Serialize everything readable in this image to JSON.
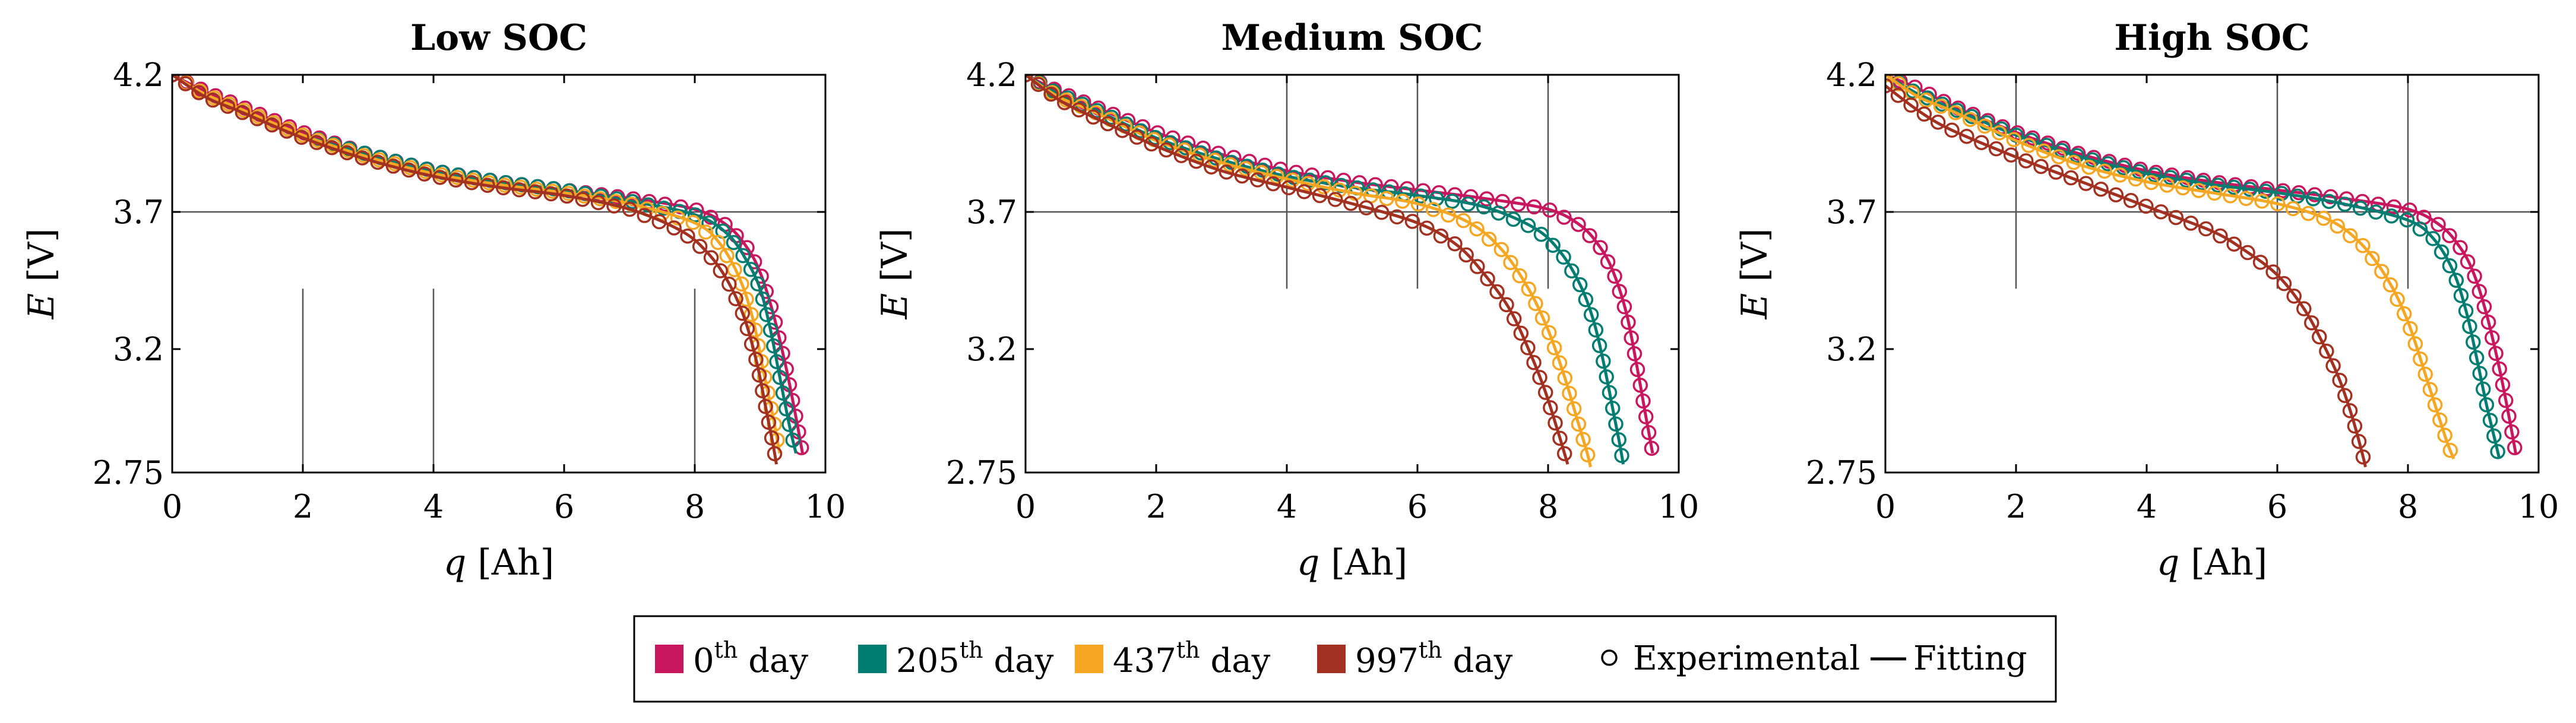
{
  "chart_data": {
    "type": "line",
    "shared": {
      "xlabel": {
        "symbol": "q",
        "unit": "[Ah]"
      },
      "ylabel": {
        "symbol": "E",
        "unit": "[V]"
      },
      "xlim": [
        0,
        10
      ],
      "ylim": [
        2.75,
        4.2
      ],
      "xticks": [
        "0",
        "2",
        "4",
        "6",
        "8",
        "10"
      ],
      "yticks": [
        "2.75",
        "3.2",
        "3.7",
        "4.2"
      ],
      "xtick_values": [
        0,
        2,
        4,
        6,
        8,
        10
      ],
      "ytick_values": [
        2.75,
        3.2,
        3.7,
        4.2
      ],
      "grid": false
    },
    "series_meta": [
      {
        "key": "d0",
        "name": "0",
        "sup": "th",
        "suffix": "day",
        "color": "#c8175f"
      },
      {
        "key": "d205",
        "name": "205",
        "sup": "th",
        "suffix": "day",
        "color": "#007d70"
      },
      {
        "key": "d437",
        "name": "437",
        "sup": "th",
        "suffix": "day",
        "color": "#f5a623"
      },
      {
        "key": "d997",
        "name": "997",
        "sup": "th",
        "suffix": "day",
        "color": "#a23121"
      }
    ],
    "legend": {
      "experimental_label": "Experimental",
      "fitting_label": "Fitting",
      "placement": "bottom-center"
    },
    "panels": [
      {
        "title": "Low SOC",
        "ref_hline": 3.7,
        "ref_vlines": [
          {
            "x": 2,
            "y_from": 2.75,
            "y_to": 3.42
          },
          {
            "x": 4,
            "y_from": 2.75,
            "y_to": 3.42
          },
          {
            "x": 8,
            "y_from": 2.75,
            "y_to": 3.42
          }
        ],
        "series": [
          {
            "key": "d0",
            "points": [
              [
                0,
                4.2
              ],
              [
                0.5,
                4.14
              ],
              [
                1,
                4.09
              ],
              [
                2,
                3.99
              ],
              [
                3,
                3.91
              ],
              [
                4,
                3.85
              ],
              [
                5,
                3.81
              ],
              [
                6,
                3.78
              ],
              [
                7,
                3.75
              ],
              [
                8,
                3.71
              ],
              [
                8.5,
                3.65
              ],
              [
                8.8,
                3.57
              ],
              [
                9.0,
                3.48
              ],
              [
                9.2,
                3.33
              ],
              [
                9.4,
                3.13
              ],
              [
                9.55,
                2.95
              ],
              [
                9.65,
                2.82
              ]
            ]
          },
          {
            "key": "d205",
            "points": [
              [
                0,
                4.2
              ],
              [
                0.5,
                4.13
              ],
              [
                1,
                4.08
              ],
              [
                2,
                3.98
              ],
              [
                3,
                3.91
              ],
              [
                4,
                3.85
              ],
              [
                5,
                3.81
              ],
              [
                6,
                3.78
              ],
              [
                7,
                3.74
              ],
              [
                8,
                3.69
              ],
              [
                8.5,
                3.62
              ],
              [
                8.8,
                3.52
              ],
              [
                9.0,
                3.42
              ],
              [
                9.15,
                3.28
              ],
              [
                9.3,
                3.1
              ],
              [
                9.45,
                2.92
              ],
              [
                9.55,
                2.82
              ]
            ]
          },
          {
            "key": "d437",
            "points": [
              [
                0,
                4.2
              ],
              [
                0.5,
                4.13
              ],
              [
                1,
                4.08
              ],
              [
                2,
                3.98
              ],
              [
                3,
                3.9
              ],
              [
                4,
                3.84
              ],
              [
                5,
                3.8
              ],
              [
                6,
                3.77
              ],
              [
                7,
                3.73
              ],
              [
                8,
                3.66
              ],
              [
                8.4,
                3.58
              ],
              [
                8.7,
                3.45
              ],
              [
                8.9,
                3.3
              ],
              [
                9.05,
                3.12
              ],
              [
                9.2,
                2.95
              ],
              [
                9.3,
                2.82
              ]
            ]
          },
          {
            "key": "d997",
            "points": [
              [
                0,
                4.2
              ],
              [
                0.5,
                4.12
              ],
              [
                1,
                4.07
              ],
              [
                2,
                3.97
              ],
              [
                3,
                3.89
              ],
              [
                4,
                3.83
              ],
              [
                5,
                3.79
              ],
              [
                6,
                3.76
              ],
              [
                7,
                3.71
              ],
              [
                7.8,
                3.63
              ],
              [
                8.2,
                3.55
              ],
              [
                8.5,
                3.45
              ],
              [
                8.75,
                3.32
              ],
              [
                8.95,
                3.15
              ],
              [
                9.1,
                2.97
              ],
              [
                9.2,
                2.85
              ],
              [
                9.25,
                2.78
              ]
            ]
          }
        ]
      },
      {
        "title": "Medium SOC",
        "ref_hline": 3.7,
        "ref_vlines": [
          {
            "x": 4,
            "y_from": 3.42,
            "y_to": 4.2
          },
          {
            "x": 6,
            "y_from": 3.42,
            "y_to": 4.2
          },
          {
            "x": 8,
            "y_from": 3.42,
            "y_to": 4.2
          }
        ],
        "series": [
          {
            "key": "d0",
            "points": [
              [
                0,
                4.2
              ],
              [
                0.5,
                4.14
              ],
              [
                1,
                4.09
              ],
              [
                2,
                3.99
              ],
              [
                3,
                3.91
              ],
              [
                4,
                3.85
              ],
              [
                5,
                3.81
              ],
              [
                6,
                3.78
              ],
              [
                7,
                3.75
              ],
              [
                8,
                3.71
              ],
              [
                8.5,
                3.65
              ],
              [
                8.8,
                3.57
              ],
              [
                9.0,
                3.48
              ],
              [
                9.2,
                3.33
              ],
              [
                9.35,
                3.15
              ],
              [
                9.5,
                2.95
              ],
              [
                9.6,
                2.82
              ]
            ]
          },
          {
            "key": "d205",
            "points": [
              [
                0,
                4.2
              ],
              [
                0.5,
                4.13
              ],
              [
                1,
                4.08
              ],
              [
                2,
                3.97
              ],
              [
                3,
                3.89
              ],
              [
                4,
                3.83
              ],
              [
                5,
                3.79
              ],
              [
                6,
                3.76
              ],
              [
                7,
                3.72
              ],
              [
                7.8,
                3.64
              ],
              [
                8.2,
                3.55
              ],
              [
                8.5,
                3.43
              ],
              [
                8.7,
                3.3
              ],
              [
                8.85,
                3.15
              ],
              [
                9.0,
                2.97
              ],
              [
                9.1,
                2.85
              ],
              [
                9.15,
                2.78
              ]
            ]
          },
          {
            "key": "d437",
            "points": [
              [
                0,
                4.2
              ],
              [
                0.5,
                4.12
              ],
              [
                1,
                4.07
              ],
              [
                2,
                3.96
              ],
              [
                3,
                3.88
              ],
              [
                4,
                3.82
              ],
              [
                5,
                3.77
              ],
              [
                6,
                3.73
              ],
              [
                6.8,
                3.66
              ],
              [
                7.3,
                3.56
              ],
              [
                7.7,
                3.42
              ],
              [
                8.0,
                3.27
              ],
              [
                8.25,
                3.1
              ],
              [
                8.45,
                2.94
              ],
              [
                8.6,
                2.82
              ],
              [
                8.65,
                2.77
              ]
            ]
          },
          {
            "key": "d997",
            "points": [
              [
                0,
                4.2
              ],
              [
                0.5,
                4.11
              ],
              [
                1,
                4.05
              ],
              [
                2,
                3.94
              ],
              [
                3,
                3.85
              ],
              [
                4,
                3.79
              ],
              [
                5,
                3.73
              ],
              [
                6,
                3.66
              ],
              [
                6.6,
                3.58
              ],
              [
                7.0,
                3.48
              ],
              [
                7.4,
                3.35
              ],
              [
                7.7,
                3.2
              ],
              [
                7.95,
                3.05
              ],
              [
                8.15,
                2.9
              ],
              [
                8.3,
                2.78
              ]
            ]
          }
        ]
      },
      {
        "title": "High SOC",
        "ref_hline": 3.7,
        "ref_vlines": [
          {
            "x": 2,
            "y_from": 3.42,
            "y_to": 4.2
          },
          {
            "x": 6,
            "y_from": 3.42,
            "y_to": 4.2
          },
          {
            "x": 8,
            "y_from": 3.42,
            "y_to": 4.2
          }
        ],
        "series": [
          {
            "key": "d0",
            "points": [
              [
                0,
                4.2
              ],
              [
                0.5,
                4.15
              ],
              [
                1,
                4.09
              ],
              [
                2,
                3.99
              ],
              [
                3,
                3.91
              ],
              [
                4,
                3.85
              ],
              [
                5,
                3.81
              ],
              [
                6,
                3.78
              ],
              [
                7,
                3.75
              ],
              [
                8,
                3.71
              ],
              [
                8.5,
                3.65
              ],
              [
                8.8,
                3.57
              ],
              [
                9.0,
                3.48
              ],
              [
                9.2,
                3.33
              ],
              [
                9.4,
                3.13
              ],
              [
                9.55,
                2.95
              ],
              [
                9.65,
                2.82
              ]
            ]
          },
          {
            "key": "d205",
            "points": [
              [
                0,
                4.2
              ],
              [
                0.5,
                4.13
              ],
              [
                1,
                4.08
              ],
              [
                2,
                3.98
              ],
              [
                3,
                3.9
              ],
              [
                4,
                3.84
              ],
              [
                5,
                3.8
              ],
              [
                6,
                3.77
              ],
              [
                7,
                3.73
              ],
              [
                8,
                3.67
              ],
              [
                8.4,
                3.6
              ],
              [
                8.7,
                3.48
              ],
              [
                8.9,
                3.33
              ],
              [
                9.05,
                3.17
              ],
              [
                9.2,
                3.0
              ],
              [
                9.35,
                2.85
              ],
              [
                9.4,
                2.8
              ]
            ]
          },
          {
            "key": "d437",
            "points": [
              [
                0,
                4.2
              ],
              [
                0.5,
                4.12
              ],
              [
                1,
                4.07
              ],
              [
                2,
                3.96
              ],
              [
                3,
                3.87
              ],
              [
                4,
                3.81
              ],
              [
                5,
                3.77
              ],
              [
                6,
                3.73
              ],
              [
                6.8,
                3.67
              ],
              [
                7.3,
                3.58
              ],
              [
                7.7,
                3.45
              ],
              [
                8.0,
                3.3
              ],
              [
                8.25,
                3.12
              ],
              [
                8.45,
                2.97
              ],
              [
                8.6,
                2.86
              ],
              [
                8.7,
                2.8
              ]
            ]
          },
          {
            "key": "d997",
            "points": [
              [
                0,
                4.16
              ],
              [
                0.5,
                4.07
              ],
              [
                1,
                4.0
              ],
              [
                2,
                3.9
              ],
              [
                3,
                3.81
              ],
              [
                4,
                3.72
              ],
              [
                5,
                3.63
              ],
              [
                5.5,
                3.56
              ],
              [
                6,
                3.47
              ],
              [
                6.4,
                3.35
              ],
              [
                6.7,
                3.22
              ],
              [
                6.95,
                3.09
              ],
              [
                7.15,
                2.95
              ],
              [
                7.3,
                2.82
              ],
              [
                7.35,
                2.77
              ]
            ]
          }
        ]
      }
    ]
  }
}
